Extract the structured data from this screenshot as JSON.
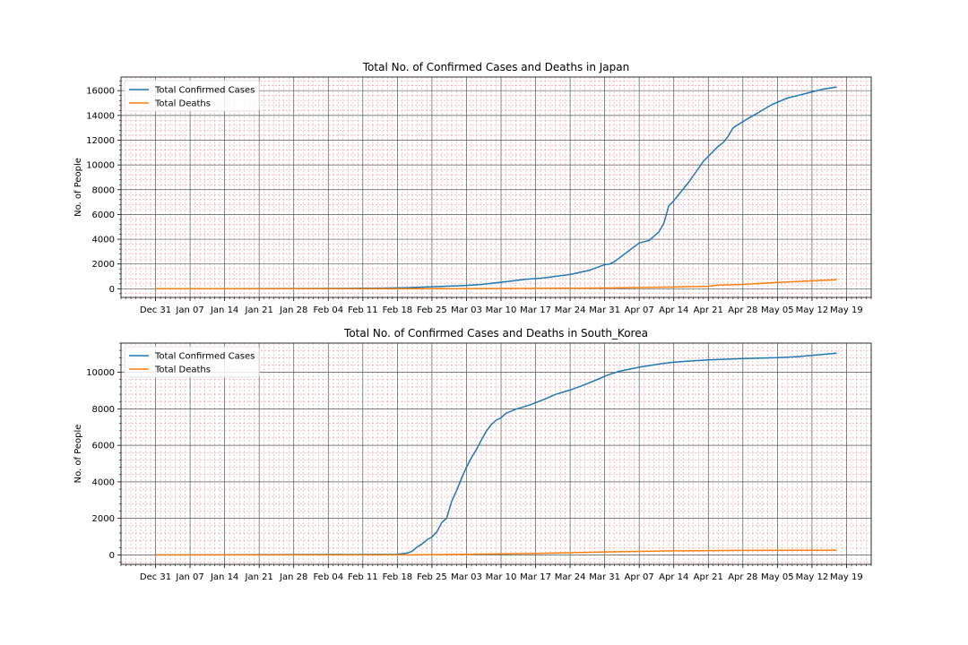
{
  "chart_data": [
    {
      "type": "line",
      "title": "Total No. of Confirmed Cases and Deaths in Japan",
      "xlabel": "",
      "ylabel": "No. of People",
      "x_tick_labels": [
        "Dec 31",
        "Jan 07",
        "Jan 14",
        "Jan 21",
        "Jan 28",
        "Feb 04",
        "Feb 11",
        "Feb 18",
        "Feb 25",
        "Mar 03",
        "Mar 10",
        "Mar 17",
        "Mar 24",
        "Mar 31",
        "Apr 07",
        "Apr 14",
        "Apr 21",
        "Apr 28",
        "May 05",
        "May 12",
        "May 19"
      ],
      "x_range": [
        "Dec 24",
        "May 24"
      ],
      "ylim": [
        -700,
        17100
      ],
      "y_ticks": [
        0,
        2000,
        4000,
        6000,
        8000,
        10000,
        12000,
        14000,
        16000
      ],
      "grid": "major and minor",
      "legend_position": "top-left",
      "colors": {
        "major_grid": "#555555",
        "minor_grid": "#f0a0a0"
      },
      "series": [
        {
          "name": "Total Confirmed Cases",
          "color": "#1f77b4",
          "points": [
            [
              "Dec 31",
              0
            ],
            [
              "Jan 15",
              1
            ],
            [
              "Feb 01",
              20
            ],
            [
              "Feb 15",
              50
            ],
            [
              "Feb 20",
              90
            ],
            [
              "Feb 25",
              160
            ],
            [
              "Mar 01",
              230
            ],
            [
              "Mar 03",
              270
            ],
            [
              "Mar 06",
              350
            ],
            [
              "Mar 10",
              520
            ],
            [
              "Mar 15",
              760
            ],
            [
              "Mar 18",
              850
            ],
            [
              "Mar 20",
              950
            ],
            [
              "Mar 24",
              1150
            ],
            [
              "Mar 28",
              1500
            ],
            [
              "Mar 31",
              1950
            ],
            [
              "Apr 01",
              2000
            ],
            [
              "Apr 02",
              2200
            ],
            [
              "Apr 03",
              2500
            ],
            [
              "Apr 05",
              3100
            ],
            [
              "Apr 07",
              3700
            ],
            [
              "Apr 08",
              3800
            ],
            [
              "Apr 09",
              3900
            ],
            [
              "Apr 11",
              4600
            ],
            [
              "Apr 12",
              5300
            ],
            [
              "Apr 13",
              6700
            ],
            [
              "Apr 14",
              7100
            ],
            [
              "Apr 17",
              8600
            ],
            [
              "Apr 20",
              10300
            ],
            [
              "Apr 23",
              11500
            ],
            [
              "Apr 24",
              11800
            ],
            [
              "Apr 25",
              12300
            ],
            [
              "Apr 26",
              13000
            ],
            [
              "Apr 28",
              13500
            ],
            [
              "May 01",
              14200
            ],
            [
              "May 04",
              14900
            ],
            [
              "May 07",
              15400
            ],
            [
              "May 11",
              15800
            ],
            [
              "May 14",
              16100
            ],
            [
              "May 17",
              16300
            ]
          ]
        },
        {
          "name": "Total Deaths",
          "color": "#ff7f0e",
          "points": [
            [
              "Dec 31",
              0
            ],
            [
              "Mar 01",
              5
            ],
            [
              "Mar 31",
              60
            ],
            [
              "Apr 14",
              140
            ],
            [
              "Apr 21",
              200
            ],
            [
              "Apr 23",
              290
            ],
            [
              "Apr 28",
              350
            ],
            [
              "May 05",
              510
            ],
            [
              "May 12",
              640
            ],
            [
              "May 17",
              730
            ]
          ]
        }
      ]
    },
    {
      "type": "line",
      "title": "Total No. of Confirmed Cases and Deaths in South_Korea",
      "xlabel": "",
      "ylabel": "No. of People",
      "x_tick_labels": [
        "Dec 31",
        "Jan 07",
        "Jan 14",
        "Jan 21",
        "Jan 28",
        "Feb 04",
        "Feb 11",
        "Feb 18",
        "Feb 25",
        "Mar 03",
        "Mar 10",
        "Mar 17",
        "Mar 24",
        "Mar 31",
        "Apr 07",
        "Apr 14",
        "Apr 21",
        "Apr 28",
        "May 05",
        "May 12",
        "May 19"
      ],
      "x_range": [
        "Dec 24",
        "May 24"
      ],
      "ylim": [
        -520,
        11600
      ],
      "y_ticks": [
        0,
        2000,
        4000,
        6000,
        8000,
        10000
      ],
      "grid": "major and minor",
      "legend_position": "top-left",
      "colors": {
        "major_grid": "#555555",
        "minor_grid": "#f0a0a0"
      },
      "series": [
        {
          "name": "Total Confirmed Cases",
          "color": "#1f77b4",
          "points": [
            [
              "Dec 31",
              0
            ],
            [
              "Feb 18",
              30
            ],
            [
              "Feb 20",
              100
            ],
            [
              "Feb 21",
              200
            ],
            [
              "Feb 22",
              430
            ],
            [
              "Feb 23",
              600
            ],
            [
              "Feb 24",
              830
            ],
            [
              "Feb 25",
              980
            ],
            [
              "Feb 26",
              1260
            ],
            [
              "Feb 27",
              1770
            ],
            [
              "Feb 28",
              2020
            ],
            [
              "Feb 29",
              2930
            ],
            [
              "Mar 01",
              3520
            ],
            [
              "Mar 02",
              4200
            ],
            [
              "Mar 03",
              4810
            ],
            [
              "Mar 04",
              5320
            ],
            [
              "Mar 05",
              5770
            ],
            [
              "Mar 06",
              6280
            ],
            [
              "Mar 07",
              6770
            ],
            [
              "Mar 08",
              7130
            ],
            [
              "Mar 09",
              7380
            ],
            [
              "Mar 10",
              7510
            ],
            [
              "Mar 11",
              7760
            ],
            [
              "Mar 13",
              7980
            ],
            [
              "Mar 16",
              8230
            ],
            [
              "Mar 19",
              8550
            ],
            [
              "Mar 21",
              8790
            ],
            [
              "Mar 24",
              9030
            ],
            [
              "Mar 27",
              9330
            ],
            [
              "Mar 30",
              9660
            ],
            [
              "Mar 31",
              9780
            ],
            [
              "Apr 01",
              9890
            ],
            [
              "Apr 03",
              10060
            ],
            [
              "Apr 07",
              10280
            ],
            [
              "Apr 11",
              10450
            ],
            [
              "Apr 14",
              10560
            ],
            [
              "Apr 21",
              10680
            ],
            [
              "Apr 28",
              10750
            ],
            [
              "May 05",
              10800
            ],
            [
              "May 08",
              10840
            ],
            [
              "May 12",
              10930
            ],
            [
              "May 17",
              11050
            ]
          ]
        },
        {
          "name": "Total Deaths",
          "color": "#ff7f0e",
          "points": [
            [
              "Dec 31",
              0
            ],
            [
              "Feb 20",
              1
            ],
            [
              "Mar 03",
              30
            ],
            [
              "Mar 17",
              80
            ],
            [
              "Mar 31",
              160
            ],
            [
              "Apr 14",
              220
            ],
            [
              "Apr 28",
              245
            ],
            [
              "May 12",
              256
            ],
            [
              "May 17",
              262
            ]
          ]
        }
      ]
    }
  ]
}
